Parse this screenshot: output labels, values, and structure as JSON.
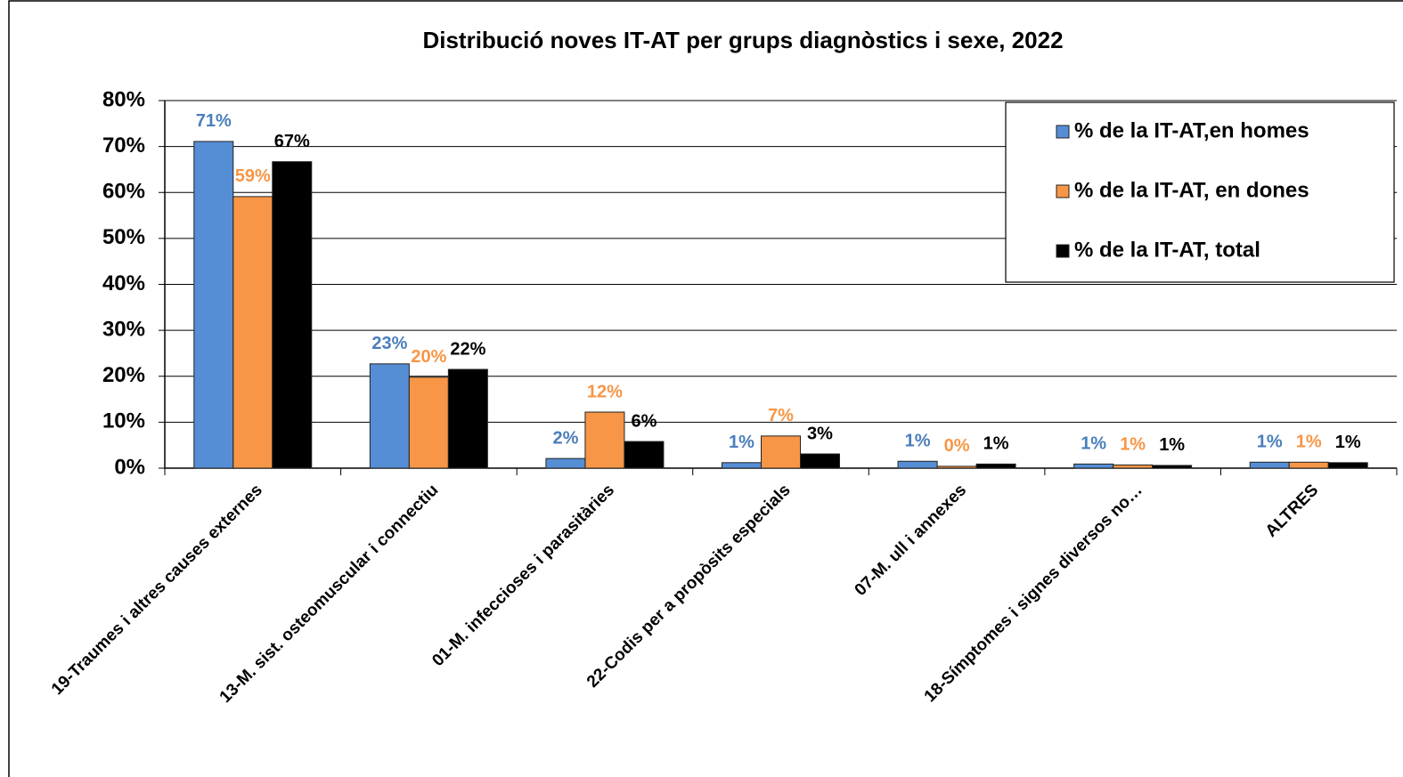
{
  "chart_data": {
    "type": "bar",
    "title": "Distribució noves IT-AT per grups diagnòstics i sexe,  2022",
    "categories": [
      "19-Traumes i altres causes externes",
      "13-M. sist. osteomuscular i connectiu",
      "01-M. infeccioses i parasitàries",
      "22-Codis per a propòsits especials",
      "07-M. ull i annexes",
      "18-Símptomes i signes diversos no…",
      "ALTRES"
    ],
    "series": [
      {
        "name": "% de la IT-AT,en homes",
        "color": "#558ed5",
        "label_color": "#4a7ebb",
        "values": [
          71.1,
          22.7,
          2.1,
          1.2,
          1.5,
          0.9,
          1.3
        ],
        "value_labels": [
          "71%",
          "23%",
          "2%",
          "1%",
          "1%",
          "1%",
          "1%"
        ]
      },
      {
        "name": "% de la IT-AT, en dones",
        "color": "#f79646",
        "label_color": "#f79646",
        "values": [
          59.1,
          19.8,
          12.2,
          7.0,
          0.4,
          0.7,
          1.3
        ],
        "value_labels": [
          "59%",
          "20%",
          "12%",
          "7%",
          "0%",
          "1%",
          "1%"
        ]
      },
      {
        "name": "% de la IT-AT, total",
        "color": "#000000",
        "label_color": "#000000",
        "values": [
          66.7,
          21.5,
          5.8,
          3.1,
          0.9,
          0.6,
          1.2
        ],
        "value_labels": [
          "67%",
          "22%",
          "6%",
          "3%",
          "1%",
          "1%",
          "1%"
        ]
      }
    ],
    "ylim": [
      0,
      80
    ],
    "yticks": [
      {
        "value": 0,
        "label": "0%"
      },
      {
        "value": 10,
        "label": "10%"
      },
      {
        "value": 20,
        "label": "20%"
      },
      {
        "value": 30,
        "label": "30%"
      },
      {
        "value": 40,
        "label": "40%"
      },
      {
        "value": 50,
        "label": "50%"
      },
      {
        "value": 60,
        "label": "60%"
      },
      {
        "value": 70,
        "label": "70%"
      },
      {
        "value": 80,
        "label": "80%"
      }
    ],
    "grid": true,
    "legend": "upper right"
  }
}
